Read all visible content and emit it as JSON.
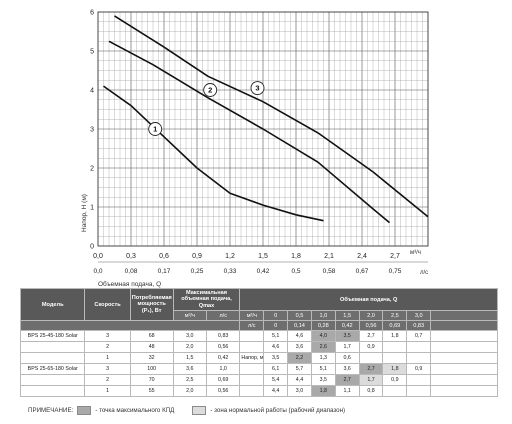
{
  "chart_data": {
    "type": "line",
    "ylabel": "Напор, H (м)",
    "xlabel": "Объемная подача, Q",
    "x_unit_top": "м³/ч",
    "x_unit_bottom": "л/с",
    "xlim": [
      0,
      3.0
    ],
    "ylim": [
      0,
      6
    ],
    "x_ticks": [
      "0,0",
      "0,3",
      "0,6",
      "0,9",
      "1,2",
      "1,5",
      "1,8",
      "2,1",
      "2,4",
      "2,7"
    ],
    "x_ticks_ls": [
      "0,0",
      "0,08",
      "0,17",
      "0,25",
      "0,33",
      "0,42",
      "0,5",
      "0,58",
      "0,67",
      "0,75"
    ],
    "y_ticks": [
      "0",
      "1",
      "2",
      "3",
      "4",
      "5",
      "6"
    ],
    "grid": true,
    "series": [
      {
        "name": "1",
        "x": [
          0.05,
          0.3,
          0.6,
          0.9,
          1.2,
          1.5,
          1.8,
          2.05
        ],
        "y": [
          4.1,
          3.6,
          2.8,
          2.0,
          1.35,
          1.05,
          0.8,
          0.65
        ]
      },
      {
        "name": "2",
        "x": [
          0.1,
          0.5,
          1.0,
          1.5,
          2.0,
          2.5,
          2.65
        ],
        "y": [
          5.25,
          4.65,
          3.8,
          3.0,
          2.15,
          0.95,
          0.6
        ]
      },
      {
        "name": "3",
        "x": [
          0.15,
          0.6,
          1.0,
          1.5,
          2.0,
          2.5,
          3.0
        ],
        "y": [
          5.9,
          5.1,
          4.35,
          3.7,
          2.9,
          1.9,
          0.75
        ]
      }
    ],
    "markers": [
      {
        "label": "1",
        "x": 0.52,
        "y": 3.0
      },
      {
        "label": "2",
        "x": 1.02,
        "y": 4.0
      },
      {
        "label": "3",
        "x": 1.45,
        "y": 4.05
      }
    ]
  },
  "table": {
    "headers": {
      "model": "Модель",
      "speed": "Скорость",
      "power": "Потребляемая мощность (P₁), Вт",
      "qmax": "Максимальная объемная подача, Qmax",
      "flow": "Объемная подача, Q",
      "head": "Напор, м"
    },
    "units": {
      "qmax_m3h": "м³/ч",
      "qmax_ls": "л/с",
      "flow_m3h": "м³/ч",
      "flow_ls": "л/с"
    },
    "flow_m3h": [
      "0",
      "0,5",
      "1,0",
      "1,5",
      "2,0",
      "2,5",
      "3,0"
    ],
    "flow_ls": [
      "0",
      "0,14",
      "0,28",
      "0,42",
      "0,56",
      "0,69",
      "0,83"
    ],
    "rows": [
      {
        "model": "BPS 25-45-180 Solar",
        "speed": "3",
        "power": "68",
        "q_m3h": "3,0",
        "q_ls": "0,83",
        "heads": [
          "5,1",
          "4,6",
          "4,0",
          "3,5",
          "2,7",
          "1,8",
          "0,7"
        ],
        "shade": [
          "",
          "",
          "max",
          "max",
          "",
          "",
          ""
        ]
      },
      {
        "model": "",
        "speed": "2",
        "power": "48",
        "q_m3h": "2,0",
        "q_ls": "0,56",
        "heads": [
          "4,6",
          "3,6",
          "2,6",
          "1,7",
          "0,9",
          "",
          ""
        ],
        "shade": [
          "",
          "",
          "max",
          "",
          "",
          "",
          ""
        ]
      },
      {
        "model": "",
        "speed": "1",
        "power": "32",
        "q_m3h": "1,5",
        "q_ls": "0,42",
        "heads": [
          "3,5",
          "2,2",
          "1,3",
          "0,6",
          "",
          "",
          ""
        ],
        "shade": [
          "",
          "max",
          "",
          "",
          "",
          "",
          ""
        ]
      },
      {
        "model": "BPS 25-65-180 Solar",
        "speed": "3",
        "power": "100",
        "q_m3h": "3,6",
        "q_ls": "1,0",
        "heads": [
          "6,1",
          "5,7",
          "5,1",
          "3,6",
          "2,7",
          "1,8",
          "0,9"
        ],
        "shade": [
          "",
          "",
          "",
          "",
          "max",
          "norm",
          ""
        ]
      },
      {
        "model": "",
        "speed": "2",
        "power": "70",
        "q_m3h": "2,5",
        "q_ls": "0,69",
        "heads": [
          "5,4",
          "4,4",
          "3,5",
          "2,7",
          "1,7",
          "0,9",
          ""
        ],
        "shade": [
          "",
          "",
          "",
          "max",
          "norm",
          "",
          ""
        ]
      },
      {
        "model": "",
        "speed": "1",
        "power": "55",
        "q_m3h": "2,0",
        "q_ls": "0,56",
        "heads": [
          "4,4",
          "3,0",
          "1,8",
          "1,1",
          "0,8",
          "",
          ""
        ],
        "shade": [
          "",
          "",
          "max",
          "",
          "",
          "",
          ""
        ]
      }
    ]
  },
  "note": {
    "label": "ПРИМЕЧАНИЕ:",
    "max_efficiency": "- точка максимального КПД",
    "normal_zone": "- зона нормальной работы (рабочий диапазон)"
  },
  "colors": {
    "max": "#a9a9a9",
    "norm": "#dcdcdc",
    "header": "#595959"
  }
}
